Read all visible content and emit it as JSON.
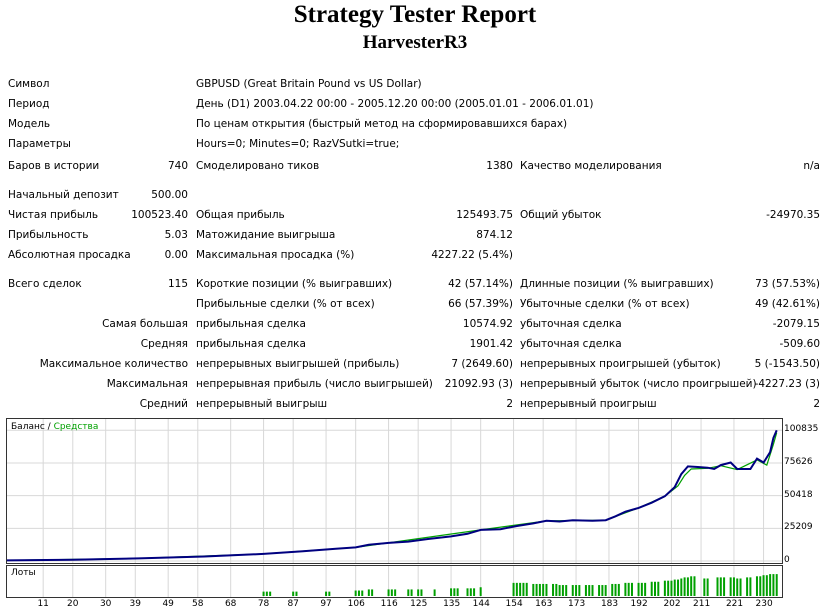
{
  "header": {
    "title": "Strategy Tester Report",
    "subtitle": "HarvesterR3"
  },
  "info": [
    {
      "label": "Символ",
      "value": "GBPUSD (Great Britain Pound vs US Dollar)"
    },
    {
      "label": "Период",
      "value": "День (D1) 2003.04.22 00:00 - 2005.12.20 00:00 (2005.01.01 - 2006.01.01)"
    },
    {
      "label": "Модель",
      "value": "По ценам открытия (быстрый метод на сформировавшихся барах)"
    },
    {
      "label": "Параметры",
      "value": "Hours=0; Minutes=0; RazVSutki=true;"
    }
  ],
  "stats": {
    "bars_label": "Баров в истории",
    "bars": "740",
    "ticks_label": "Смоделировано тиков",
    "ticks": "1380",
    "quality_label": "Качество моделирования",
    "quality": "n/a",
    "deposit_label": "Начальный депозит",
    "deposit": "500.00",
    "net_label": "Чистая прибыль",
    "net": "100523.40",
    "gross_profit_label": "Общая прибыль",
    "gross_profit": "125493.75",
    "gross_loss_label": "Общий убыток",
    "gross_loss": "-24970.35",
    "pf_label": "Прибыльность",
    "pf": "5.03",
    "payoff_label": "Матожидание выигрыша",
    "payoff": "874.12",
    "abs_dd_label": "Абсолютная просадка",
    "abs_dd": "0.00",
    "max_dd_label": "Максимальная просадка (%)",
    "max_dd": "4227.22 (5.4%)",
    "trades_label": "Всего сделок",
    "trades": "115",
    "short_label": "Короткие позиции (% выигравших)",
    "short": "42 (57.14%)",
    "long_label": "Длинные позиции (% выигравших)",
    "long": "73 (57.53%)",
    "prof_trades_label": "Прибыльные сделки (% от всех)",
    "prof_trades": "66 (57.39%)",
    "loss_trades_label": "Убыточные сделки (% от всех)",
    "loss_trades": "49 (42.61%)",
    "largest_label": "Самая большая",
    "largest_prof_label": "прибыльная сделка",
    "largest_prof": "10574.92",
    "largest_loss_label": "убыточная сделка",
    "largest_loss": "-2079.15",
    "avg_label": "Средняя",
    "avg_prof_label": "прибыльная сделка",
    "avg_prof": "1901.42",
    "avg_loss_label": "убыточная сделка",
    "avg_loss": "-509.60",
    "maxcount_label": "Максимальное количество",
    "maxcount_wins_label": "непрерывных выигрышей (прибыль)",
    "maxcount_wins": "7 (2649.60)",
    "maxcount_losses_label": "непрерывных проигрышей (убыток)",
    "maxcount_losses": "5 (-1543.50)",
    "maximal_label": "Максимальная",
    "maximal_profit_label": "непрерывная прибыль (число выигрышей)",
    "maximal_profit": "21092.93 (3)",
    "maximal_loss_label": "непрерывный убыток (число проигрышей)",
    "maximal_loss": "-4227.23 (3)",
    "average_label": "Средний",
    "average_win_label": "непрерывный выигрыш",
    "average_win": "2",
    "average_loss_label": "непрерывный проигрыш",
    "average_loss": "2"
  },
  "chart_data": {
    "type": "line",
    "legend": {
      "balance": "Баланс",
      "separator": " / ",
      "equity": "Средства"
    },
    "colors": {
      "balance": "#000080",
      "equity": "#00a000",
      "volume": "#00a000",
      "grid": "#d8d8d8"
    },
    "y_ticks": [
      "100835",
      "75626",
      "50418",
      "25209",
      "0"
    ],
    "y_tick_values": [
      100835,
      75626,
      50418,
      25209,
      0
    ],
    "ylim": [
      0,
      108000
    ],
    "x_ticks": [
      "11",
      "20",
      "30",
      "39",
      "49",
      "58",
      "68",
      "78",
      "87",
      "97",
      "106",
      "116",
      "125",
      "135",
      "144",
      "154",
      "163",
      "173",
      "183",
      "192",
      "202",
      "211",
      "221",
      "230"
    ],
    "x_tick_values": [
      11,
      20,
      30,
      39,
      49,
      58,
      68,
      78,
      87,
      97,
      106,
      116,
      125,
      135,
      144,
      154,
      163,
      173,
      183,
      192,
      202,
      211,
      221,
      230
    ],
    "xlim": [
      0,
      235
    ],
    "balance": [
      [
        0,
        500
      ],
      [
        20,
        1000
      ],
      [
        40,
        2000
      ],
      [
        60,
        3500
      ],
      [
        78,
        5500
      ],
      [
        90,
        7500
      ],
      [
        100,
        9500
      ],
      [
        106,
        10500
      ],
      [
        110,
        12500
      ],
      [
        116,
        14000
      ],
      [
        122,
        15000
      ],
      [
        128,
        17000
      ],
      [
        135,
        19000
      ],
      [
        140,
        21000
      ],
      [
        144,
        24000
      ],
      [
        150,
        24500
      ],
      [
        155,
        27000
      ],
      [
        160,
        29000
      ],
      [
        164,
        31000
      ],
      [
        168,
        30500
      ],
      [
        172,
        31500
      ],
      [
        178,
        31000
      ],
      [
        182,
        31500
      ],
      [
        185,
        34500
      ],
      [
        188,
        38000
      ],
      [
        192,
        41000
      ],
      [
        196,
        45000
      ],
      [
        200,
        50000
      ],
      [
        203,
        57000
      ],
      [
        205,
        67000
      ],
      [
        207,
        73000
      ],
      [
        210,
        72500
      ],
      [
        213,
        72000
      ],
      [
        215,
        71000
      ],
      [
        217,
        74000
      ],
      [
        220,
        76000
      ],
      [
        222,
        71000
      ],
      [
        226,
        71000
      ],
      [
        228,
        79000
      ],
      [
        230,
        76000
      ],
      [
        232,
        84000
      ],
      [
        233,
        95000
      ],
      [
        234,
        100835
      ]
    ],
    "equity": [
      [
        0,
        500
      ],
      [
        40,
        2000
      ],
      [
        78,
        5500
      ],
      [
        106,
        10500
      ],
      [
        144,
        24000
      ],
      [
        164,
        31000
      ],
      [
        182,
        31500
      ],
      [
        192,
        41000
      ],
      [
        200,
        50000
      ],
      [
        204,
        58000
      ],
      [
        206,
        66000
      ],
      [
        208,
        71000
      ],
      [
        213,
        71500
      ],
      [
        217,
        73500
      ],
      [
        222,
        70500
      ],
      [
        228,
        78000
      ],
      [
        231,
        74000
      ],
      [
        233,
        90000
      ],
      [
        234,
        99000
      ]
    ],
    "volume_label": "Лоты",
    "volumes": [
      [
        78,
        0.2
      ],
      [
        79,
        0.2
      ],
      [
        80,
        0.2
      ],
      [
        87,
        0.2
      ],
      [
        88,
        0.2
      ],
      [
        97,
        0.2
      ],
      [
        98,
        0.2
      ],
      [
        106,
        0.25
      ],
      [
        107,
        0.25
      ],
      [
        108,
        0.25
      ],
      [
        110,
        0.3
      ],
      [
        111,
        0.3
      ],
      [
        116,
        0.3
      ],
      [
        117,
        0.3
      ],
      [
        118,
        0.3
      ],
      [
        122,
        0.3
      ],
      [
        123,
        0.3
      ],
      [
        125,
        0.3
      ],
      [
        126,
        0.3
      ],
      [
        130,
        0.3
      ],
      [
        135,
        0.35
      ],
      [
        136,
        0.35
      ],
      [
        137,
        0.35
      ],
      [
        140,
        0.35
      ],
      [
        141,
        0.35
      ],
      [
        142,
        0.35
      ],
      [
        144,
        0.4
      ],
      [
        154,
        0.6
      ],
      [
        155,
        0.6
      ],
      [
        156,
        0.6
      ],
      [
        157,
        0.6
      ],
      [
        158,
        0.6
      ],
      [
        160,
        0.55
      ],
      [
        161,
        0.55
      ],
      [
        162,
        0.55
      ],
      [
        163,
        0.55
      ],
      [
        164,
        0.55
      ],
      [
        166,
        0.55
      ],
      [
        167,
        0.55
      ],
      [
        168,
        0.5
      ],
      [
        169,
        0.5
      ],
      [
        170,
        0.5
      ],
      [
        172,
        0.5
      ],
      [
        173,
        0.5
      ],
      [
        174,
        0.5
      ],
      [
        176,
        0.5
      ],
      [
        177,
        0.5
      ],
      [
        178,
        0.5
      ],
      [
        180,
        0.5
      ],
      [
        181,
        0.5
      ],
      [
        182,
        0.5
      ],
      [
        184,
        0.55
      ],
      [
        185,
        0.55
      ],
      [
        186,
        0.55
      ],
      [
        188,
        0.6
      ],
      [
        189,
        0.6
      ],
      [
        190,
        0.6
      ],
      [
        192,
        0.6
      ],
      [
        193,
        0.6
      ],
      [
        194,
        0.6
      ],
      [
        196,
        0.65
      ],
      [
        197,
        0.65
      ],
      [
        198,
        0.65
      ],
      [
        200,
        0.7
      ],
      [
        201,
        0.7
      ],
      [
        202,
        0.7
      ],
      [
        203,
        0.75
      ],
      [
        204,
        0.75
      ],
      [
        205,
        0.8
      ],
      [
        206,
        0.85
      ],
      [
        207,
        0.85
      ],
      [
        208,
        0.9
      ],
      [
        209,
        0.9
      ],
      [
        212,
        0.8
      ],
      [
        213,
        0.8
      ],
      [
        216,
        0.85
      ],
      [
        217,
        0.85
      ],
      [
        218,
        0.85
      ],
      [
        220,
        0.85
      ],
      [
        221,
        0.85
      ],
      [
        222,
        0.8
      ],
      [
        223,
        0.8
      ],
      [
        225,
        0.85
      ],
      [
        226,
        0.85
      ],
      [
        228,
        0.9
      ],
      [
        229,
        0.9
      ],
      [
        230,
        0.95
      ],
      [
        231,
        0.95
      ],
      [
        232,
        1.0
      ],
      [
        233,
        1.0
      ],
      [
        234,
        1.0
      ]
    ],
    "vol_ylim": [
      0,
      1.05
    ]
  }
}
